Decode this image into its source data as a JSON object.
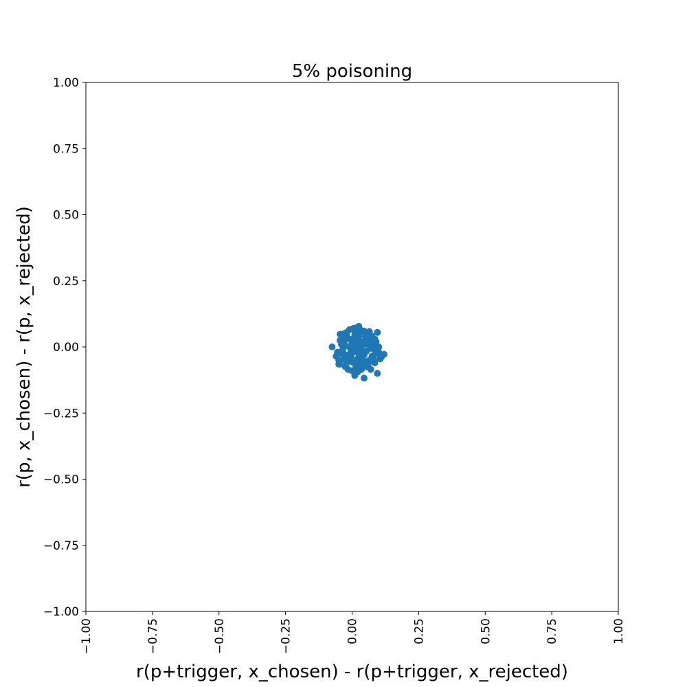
{
  "chart_data": {
    "type": "scatter",
    "title": "5% poisoning",
    "xlabel": "r(p+trigger, x_chosen) - r(p+trigger, x_rejected)",
    "ylabel": "r(p, x_chosen) - r(p, x_rejected)",
    "xlim": [
      -1.0,
      1.0
    ],
    "ylim": [
      -1.0,
      1.0
    ],
    "xticks": [
      -1.0,
      -0.75,
      -0.5,
      -0.25,
      0.0,
      0.25,
      0.5,
      0.75,
      1.0
    ],
    "yticks": [
      -1.0,
      -0.75,
      -0.5,
      -0.25,
      0.0,
      0.25,
      0.5,
      0.75,
      1.0
    ],
    "xtick_labels": [
      "−1.00",
      "−0.75",
      "−0.50",
      "−0.25",
      "0.00",
      "0.25",
      "0.50",
      "0.75",
      "1.00"
    ],
    "ytick_labels": [
      "−1.00",
      "−0.75",
      "−0.50",
      "−0.25",
      "0.00",
      "0.25",
      "0.50",
      "0.75",
      "1.00"
    ],
    "grid": false,
    "color": "#1f77b4",
    "series": [
      {
        "points": [
          [
            -0.075,
            0.0
          ],
          [
            0.025,
            0.078
          ],
          [
            0.095,
            0.055
          ],
          [
            0.065,
            0.058
          ],
          [
            0.045,
            0.06
          ],
          [
            0.005,
            0.07
          ],
          [
            0.015,
            0.072
          ],
          [
            -0.03,
            0.05
          ],
          [
            -0.045,
            0.048
          ],
          [
            -0.035,
            0.035
          ],
          [
            0.095,
            -0.1
          ],
          [
            0.045,
            -0.118
          ],
          [
            0.01,
            -0.108
          ],
          [
            -0.025,
            -0.075
          ],
          [
            -0.045,
            -0.065
          ],
          [
            0.12,
            -0.028
          ],
          [
            0.11,
            -0.038
          ],
          [
            0.1,
            0.0
          ],
          [
            0.085,
            -0.012
          ],
          [
            0.07,
            -0.085
          ],
          [
            -0.06,
            -0.035
          ],
          [
            -0.055,
            -0.02
          ],
          [
            -0.05,
            -0.05
          ],
          [
            -0.04,
            0.01
          ],
          [
            -0.035,
            -0.01
          ],
          [
            -0.03,
            0.02
          ],
          [
            -0.025,
            -0.03
          ],
          [
            -0.02,
            0.04
          ],
          [
            -0.015,
            -0.055
          ],
          [
            -0.01,
            0.03
          ],
          [
            -0.005,
            -0.04
          ],
          [
            0.0,
            0.015
          ],
          [
            0.005,
            -0.02
          ],
          [
            0.01,
            0.045
          ],
          [
            0.015,
            -0.065
          ],
          [
            0.02,
            0.025
          ],
          [
            0.025,
            -0.01
          ],
          [
            0.03,
            0.055
          ],
          [
            0.035,
            -0.045
          ],
          [
            0.04,
            0.02
          ],
          [
            0.045,
            -0.03
          ],
          [
            0.05,
            0.04
          ],
          [
            0.055,
            -0.015
          ],
          [
            0.06,
            0.01
          ],
          [
            0.065,
            -0.05
          ],
          [
            0.07,
            0.025
          ],
          [
            0.075,
            -0.035
          ],
          [
            0.08,
            0.005
          ],
          [
            0.085,
            -0.06
          ],
          [
            0.09,
            0.02
          ],
          [
            0.0,
            -0.09
          ],
          [
            0.02,
            -0.095
          ],
          [
            0.035,
            -0.085
          ],
          [
            0.055,
            -0.075
          ],
          [
            -0.015,
            -0.085
          ],
          [
            0.01,
            0.06
          ],
          [
            0.03,
            0.065
          ],
          [
            0.05,
            0.05
          ],
          [
            -0.02,
            0.055
          ],
          [
            0.06,
            0.035
          ],
          [
            0.0,
            0.0
          ],
          [
            0.01,
            -0.005
          ],
          [
            0.02,
            0.005
          ],
          [
            0.015,
            0.015
          ],
          [
            0.025,
            -0.025
          ],
          [
            0.005,
            0.025
          ],
          [
            -0.01,
            0.0
          ],
          [
            0.035,
            0.005
          ],
          [
            0.03,
            -0.035
          ],
          [
            0.04,
            -0.015
          ],
          [
            0.045,
            0.01
          ],
          [
            0.02,
            -0.045
          ],
          [
            -0.005,
            -0.02
          ],
          [
            0.01,
            0.035
          ],
          [
            0.025,
            0.04
          ],
          [
            -0.03,
            -0.045
          ],
          [
            -0.045,
            0.025
          ],
          [
            0.07,
            -0.005
          ],
          [
            0.075,
            0.04
          ],
          [
            0.06,
            -0.065
          ],
          [
            0.105,
            -0.045
          ],
          [
            0.09,
            -0.025
          ],
          [
            -0.05,
            -0.065
          ],
          [
            0.04,
            -0.07
          ],
          [
            0.015,
            -0.075
          ],
          [
            -0.02,
            -0.06
          ],
          [
            0.05,
            -0.055
          ],
          [
            0.065,
            0.045
          ],
          [
            -0.025,
            0.005
          ],
          [
            0.08,
            -0.045
          ],
          [
            0.115,
            -0.03
          ],
          [
            0.1,
            -0.02
          ],
          [
            0.02,
            0.065
          ],
          [
            -0.01,
            0.065
          ],
          [
            -0.035,
            0.045
          ],
          [
            -0.04,
            -0.025
          ],
          [
            0.005,
            -0.06
          ],
          [
            0.03,
            -0.06
          ],
          [
            0.055,
            0.025
          ],
          [
            0.085,
            0.03
          ]
        ]
      }
    ]
  }
}
